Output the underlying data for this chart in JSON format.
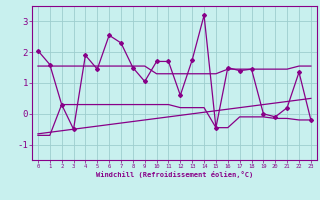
{
  "xlabel": "Windchill (Refroidissement éolien,°C)",
  "bg_color": "#c8f0ee",
  "grid_color": "#9ecece",
  "line_color": "#880088",
  "x_values": [
    0,
    1,
    2,
    3,
    4,
    5,
    6,
    7,
    8,
    9,
    10,
    11,
    12,
    13,
    14,
    15,
    16,
    17,
    18,
    19,
    20,
    21,
    22,
    23
  ],
  "y_main": [
    2.05,
    1.6,
    0.3,
    -0.5,
    1.9,
    1.45,
    2.55,
    2.3,
    1.5,
    1.05,
    1.7,
    1.7,
    0.6,
    1.75,
    3.2,
    -0.45,
    1.5,
    1.4,
    1.45,
    0.0,
    -0.1,
    0.2,
    1.35,
    -0.2
  ],
  "y_upper": [
    1.55,
    1.55,
    1.55,
    1.55,
    1.55,
    1.55,
    1.55,
    1.55,
    1.55,
    1.55,
    1.3,
    1.3,
    1.3,
    1.3,
    1.3,
    1.3,
    1.45,
    1.45,
    1.45,
    1.45,
    1.45,
    1.45,
    1.55,
    1.55
  ],
  "y_lower": [
    -0.7,
    -0.7,
    0.3,
    0.3,
    0.3,
    0.3,
    0.3,
    0.3,
    0.3,
    0.3,
    0.3,
    0.3,
    0.2,
    0.2,
    0.2,
    -0.45,
    -0.45,
    -0.1,
    -0.1,
    -0.1,
    -0.15,
    -0.15,
    -0.2,
    -0.2
  ],
  "trend_x": [
    0,
    23
  ],
  "trend_y": [
    -0.65,
    0.5
  ],
  "ylim": [
    -1.5,
    3.5
  ],
  "xlim": [
    -0.5,
    23.5
  ],
  "yticks": [
    -1,
    0,
    1,
    2,
    3
  ],
  "ytick_labels": [
    "-1",
    "0",
    "1",
    "2",
    "3"
  ]
}
